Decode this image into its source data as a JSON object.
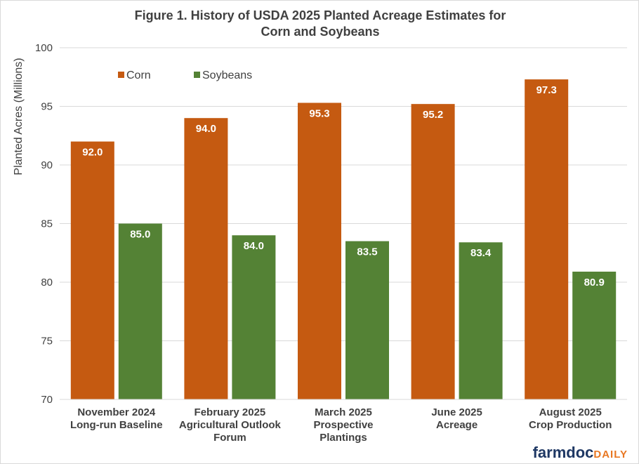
{
  "chart_data": {
    "type": "bar",
    "title": "Figure 1. History of USDA 2025 Planted Acreage Estimates for Corn and Soybeans",
    "title_lines": [
      "Figure 1. History of USDA 2025 Planted Acreage Estimates for",
      "Corn and Soybeans"
    ],
    "ylabel": "Planted Acres (Millions)",
    "xlabel": "",
    "ylim": [
      70,
      100
    ],
    "yticks": [
      70,
      75,
      80,
      85,
      90,
      95,
      100
    ],
    "grid": true,
    "legend_placement": "top-left",
    "categories": [
      "November 2024 Long-run Baseline",
      "February 2025 Agricultural Outlook Forum",
      "March 2025 Prospective Plantings",
      "June 2025 Acreage",
      "August 2025 Crop Production"
    ],
    "category_lines": [
      [
        "November 2024",
        "Long-run Baseline"
      ],
      [
        "February 2025",
        "Agricultural Outlook",
        "Forum"
      ],
      [
        "March 2025",
        "Prospective",
        "Plantings"
      ],
      [
        "June 2025",
        "Acreage"
      ],
      [
        "August 2025",
        "Crop Production"
      ]
    ],
    "series": [
      {
        "name": "Corn",
        "color": "#c55a11",
        "values": [
          92.0,
          94.0,
          95.3,
          95.2,
          97.3
        ],
        "labels": [
          "92.0",
          "94.0",
          "95.3",
          "95.2",
          "97.3"
        ]
      },
      {
        "name": "Soybeans",
        "color": "#548235",
        "values": [
          85.0,
          84.0,
          83.5,
          83.4,
          80.9
        ],
        "labels": [
          "85.0",
          "84.0",
          "83.5",
          "83.4",
          "80.9"
        ]
      }
    ]
  },
  "branding": {
    "part1": "farmdoc",
    "part2": "DAILY",
    "color1": "#1f3864",
    "color2": "#e87722"
  }
}
